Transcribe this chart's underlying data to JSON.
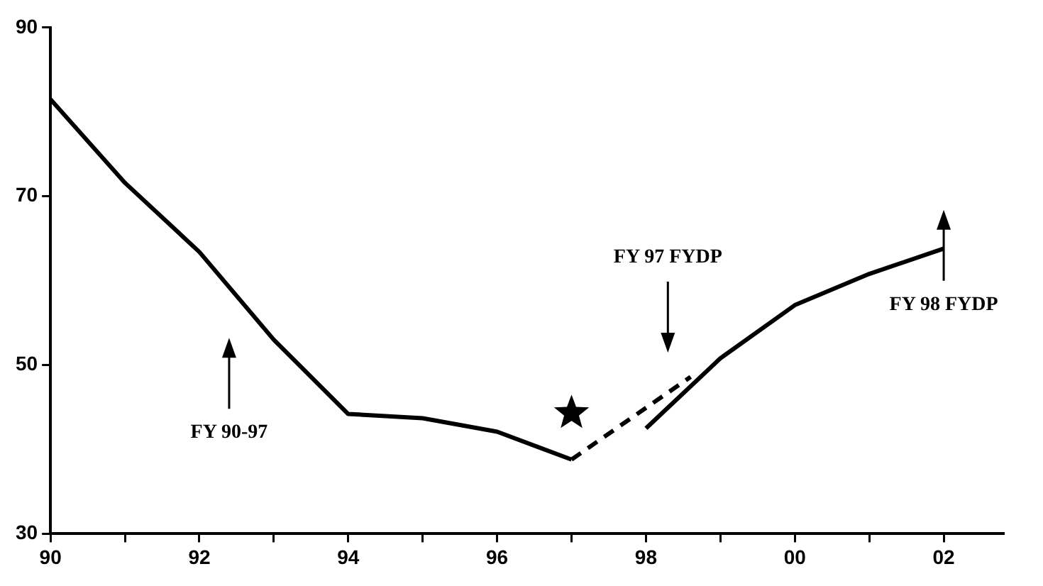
{
  "chart_data": {
    "type": "line",
    "xlim": [
      1990,
      2002.8
    ],
    "xticks": [
      {
        "value": 1990,
        "label": "90"
      },
      {
        "value": 1991,
        "label": null
      },
      {
        "value": 1992,
        "label": "92"
      },
      {
        "value": 1993,
        "label": null
      },
      {
        "value": 1994,
        "label": "94"
      },
      {
        "value": 1995,
        "label": null
      },
      {
        "value": 1996,
        "label": "96"
      },
      {
        "value": 1997,
        "label": null
      },
      {
        "value": 1998,
        "label": "98"
      },
      {
        "value": 1999,
        "label": null
      },
      {
        "value": 2000,
        "label": "00"
      },
      {
        "value": 2001,
        "label": null
      },
      {
        "value": 2002,
        "label": "02"
      }
    ],
    "ylim": [
      30,
      90
    ],
    "yticks": [
      30,
      50,
      70,
      90
    ],
    "series": [
      {
        "color": "#000000",
        "x": [
          1990,
          1991,
          1992,
          1993,
          1994,
          1995,
          1996,
          1997
        ],
        "values": [
          81.5,
          71.6,
          63.4,
          53,
          44.2,
          43.7,
          42.1,
          38.8
        ]
      },
      {
        "color": "#000000",
        "line_style": "dashed",
        "x": [
          1997,
          1998.6
        ],
        "values": [
          38.8,
          48.6
        ]
      },
      {
        "color": "#000000",
        "x": [
          1998,
          1999,
          2000,
          2001,
          2002
        ],
        "values": [
          42.5,
          50.8,
          57.1,
          60.8,
          63.8
        ]
      },
      {
        "type": "scatter",
        "marker": "star",
        "color": "#000000",
        "x": [
          1997
        ],
        "values": [
          44.3
        ]
      }
    ],
    "annotations": [
      "FY 90-97",
      "FY 97 FYDP",
      "FY 98 FYDP"
    ],
    "marker": "none",
    "line_style": "solid",
    "grid": false,
    "legend": false
  }
}
